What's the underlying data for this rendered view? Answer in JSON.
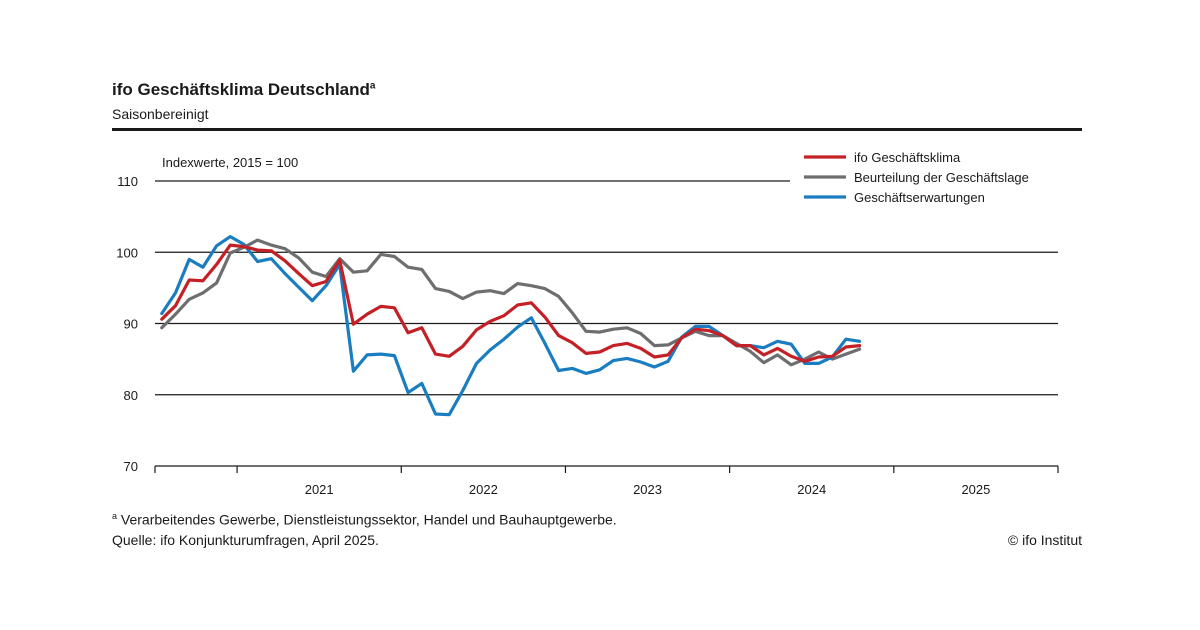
{
  "header": {
    "title": "ifo Geschäftsklima Deutschland",
    "title_marker": "a",
    "subtitle": "Saisonbereinigt"
  },
  "footer": {
    "footnote_marker": "a",
    "footnote": "Verarbeitendes Gewerbe, Dienstleistungssektor, Handel und Bauhauptgewerbe.",
    "source": "Quelle: ifo Konjunkturumfragen, April 2025.",
    "copyright": "© ifo Institut"
  },
  "chart_data": {
    "type": "line",
    "unit_label": "Indexwerte, 2015 = 100",
    "ylim": [
      70,
      110
    ],
    "yticks": [
      70,
      80,
      90,
      100,
      110
    ],
    "gridlines": [
      80,
      90,
      100,
      110
    ],
    "x_range": [
      "2020-07",
      "2025-12"
    ],
    "x_year_labels": [
      "2021",
      "2022",
      "2023",
      "2024",
      "2025"
    ],
    "x_month_index_start": "2020-07",
    "legend_position": "top-right",
    "series": [
      {
        "name": "ifo Geschäftsklima",
        "color": "#c42127",
        "values": [
          90.6,
          92.5,
          96.1,
          96.0,
          98.3,
          101.0,
          100.8,
          100.3,
          100.2,
          98.8,
          97.0,
          95.3,
          95.9,
          98.9,
          89.9,
          91.3,
          92.4,
          92.2,
          88.7,
          89.4,
          85.7,
          85.4,
          86.8,
          89.1,
          90.3,
          91.1,
          92.6,
          92.9,
          90.9,
          88.3,
          87.3,
          85.8,
          86.0,
          86.9,
          87.2,
          86.5,
          85.3,
          85.6,
          88.0,
          89.2,
          89.0,
          88.3,
          86.9,
          86.9,
          85.6,
          86.5,
          85.4,
          84.7,
          85.3,
          85.4,
          86.7,
          86.9
        ]
      },
      {
        "name": "Beurteilung der Geschäftslage",
        "color": "#6d6e70",
        "values": [
          89.4,
          91.3,
          93.4,
          94.3,
          95.7,
          99.9,
          100.7,
          101.7,
          101.0,
          100.5,
          99.2,
          97.2,
          96.6,
          99.1,
          97.2,
          97.4,
          99.7,
          99.4,
          97.9,
          97.6,
          94.9,
          94.5,
          93.5,
          94.4,
          94.6,
          94.2,
          95.6,
          95.3,
          94.9,
          93.8,
          91.5,
          88.9,
          88.8,
          89.2,
          89.4,
          88.6,
          86.9,
          87.0,
          88.0,
          88.9,
          88.3,
          88.3,
          87.2,
          86.1,
          84.5,
          85.6,
          84.2,
          85.0,
          86.0,
          85.0,
          85.7,
          86.4
        ]
      },
      {
        "name": "Geschäftserwartungen",
        "color": "#1a7dc1",
        "values": [
          91.4,
          94.3,
          99.0,
          97.9,
          100.9,
          102.2,
          101.1,
          98.7,
          99.1,
          97.0,
          95.1,
          93.2,
          95.3,
          98.3,
          83.3,
          85.6,
          85.7,
          85.5,
          80.3,
          81.6,
          77.3,
          77.2,
          80.6,
          84.4,
          86.3,
          87.8,
          89.5,
          90.8,
          87.2,
          83.4,
          83.7,
          83.0,
          83.5,
          84.8,
          85.1,
          84.6,
          83.9,
          84.7,
          88.1,
          89.6,
          89.6,
          88.3,
          86.9,
          86.9,
          86.6,
          87.5,
          87.1,
          84.4,
          84.4,
          85.3,
          87.8,
          87.5
        ]
      }
    ]
  }
}
